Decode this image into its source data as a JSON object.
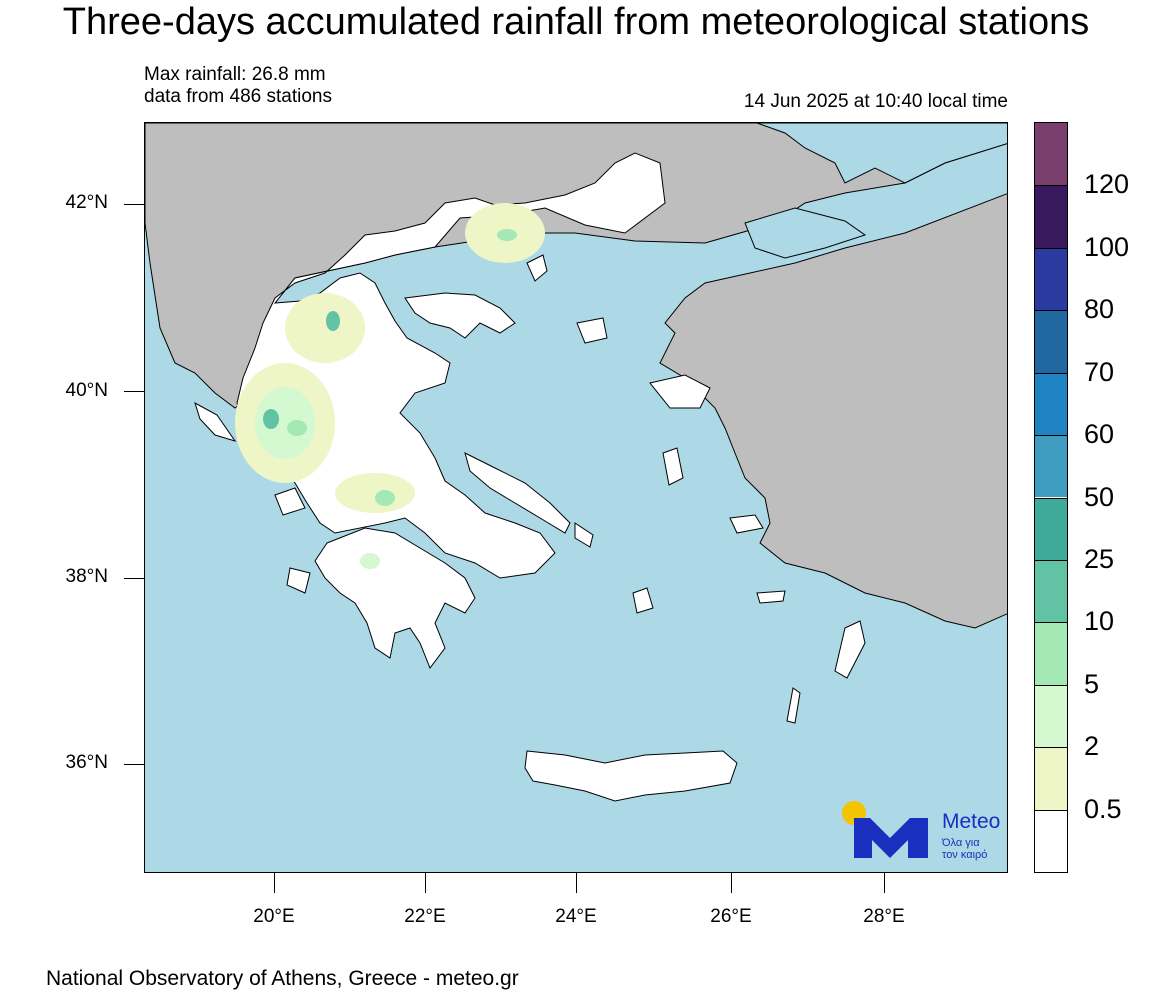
{
  "title": "Three-days accumulated rainfall from meteorological stations",
  "info": {
    "max_rainfall": "Max rainfall: 26.8 mm",
    "stations": "data from 486 stations",
    "timestamp": "14 Jun 2025 at 10:40 local time"
  },
  "axes": {
    "lat_labels": [
      "42°N",
      "40°N",
      "38°N",
      "36°N"
    ],
    "lon_labels": [
      "20°E",
      "22°E",
      "24°E",
      "26°E",
      "28°E"
    ]
  },
  "legend": {
    "labels": [
      "120",
      "100",
      "80",
      "70",
      "60",
      "50",
      "25",
      "10",
      "5",
      "2",
      "0.5"
    ],
    "colors": [
      "#7b3f6e",
      "#3a1a5e",
      "#2a3a9e",
      "#2268a0",
      "#1f82c2",
      "#3d9cc0",
      "#3faa9a",
      "#62c2a4",
      "#a4e8b6",
      "#d4f8d0",
      "#eef6c8",
      "#ffffff"
    ]
  },
  "map_colors": {
    "sea": "#add8e6",
    "land_other": "#bebebe",
    "land_greece": "#ffffff",
    "rain_light": "#eef6c8",
    "rain_mid": "#d4f8d0",
    "rain_heavy": "#a4e8b6",
    "rain_peak": "#62c2a4"
  },
  "logo": {
    "word": "Meteo",
    "tagline_1": "Όλα για",
    "tagline_2": "τον καιρό"
  },
  "footer": "National Observatory of Athens, Greece - meteo.gr"
}
